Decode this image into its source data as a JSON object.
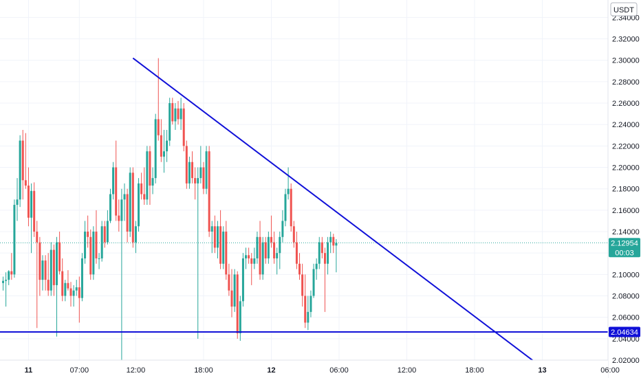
{
  "currency": "USDT",
  "colors": {
    "up": "#26a69a",
    "down": "#ef5350",
    "trendline": "#1010d8",
    "support": "#1010d8",
    "price_label": "#26a69a",
    "axis_text": "#131722",
    "grid": "#f0f3fa"
  },
  "price_label": {
    "value": "2.12954",
    "countdown": "00:03"
  },
  "support_label": {
    "value": "2.04634"
  },
  "chart_data": {
    "type": "candlestick",
    "y_ticks": [
      "2.02000",
      "2.04000",
      "2.06000",
      "2.08000",
      "2.10000",
      "2.12000",
      "2.14000",
      "2.16000",
      "2.18000",
      "2.20000",
      "2.22000",
      "2.24000",
      "2.26000",
      "2.28000",
      "2.30000",
      "2.32000",
      "2.34000"
    ],
    "ylim": [
      2.0033,
      2.3563
    ],
    "x_ticks": [
      {
        "label": "11",
        "bar": 9,
        "bold": true
      },
      {
        "label": "07:00",
        "bar": 27,
        "bold": false
      },
      {
        "label": "12:00",
        "bar": 47,
        "bold": false
      },
      {
        "label": "18:00",
        "bar": 71,
        "bold": false
      },
      {
        "label": "12",
        "bar": 95,
        "bold": true
      },
      {
        "label": "06:00",
        "bar": 119,
        "bold": false
      },
      {
        "label": "12:00",
        "bar": 143,
        "bold": false
      },
      {
        "label": "18:00",
        "bar": 167,
        "bold": false
      },
      {
        "label": "13",
        "bar": 191,
        "bold": true
      },
      {
        "label": "06:00",
        "bar": 215,
        "bold": false
      }
    ],
    "current_price": 2.12954,
    "support_level": 2.04634,
    "trendline": {
      "start": {
        "bar": 46,
        "price": 2.302
      },
      "end": {
        "bar": 195,
        "price": 2.005
      }
    },
    "candles": [
      [
        2.092,
        2.098,
        2.085,
        2.094
      ],
      [
        2.094,
        2.102,
        2.07,
        2.095
      ],
      [
        2.095,
        2.104,
        2.09,
        2.103
      ],
      [
        2.103,
        2.12,
        2.095,
        2.1
      ],
      [
        2.1,
        2.17,
        2.097,
        2.165
      ],
      [
        2.165,
        2.19,
        2.15,
        2.17
      ],
      [
        2.17,
        2.23,
        2.163,
        2.225
      ],
      [
        2.225,
        2.235,
        2.17,
        2.188
      ],
      [
        2.188,
        2.232,
        2.18,
        2.183
      ],
      [
        2.183,
        2.2,
        2.145,
        2.153
      ],
      [
        2.153,
        2.185,
        2.12,
        2.178
      ],
      [
        2.178,
        2.186,
        2.135,
        2.14
      ],
      [
        2.14,
        2.15,
        2.05,
        2.13
      ],
      [
        2.13,
        2.135,
        2.08,
        2.095
      ],
      [
        2.095,
        2.118,
        2.085,
        2.113
      ],
      [
        2.113,
        2.118,
        2.085,
        2.095
      ],
      [
        2.095,
        2.12,
        2.08,
        2.085
      ],
      [
        2.085,
        2.13,
        2.08,
        2.123
      ],
      [
        2.123,
        2.128,
        2.08,
        2.09
      ],
      [
        2.09,
        2.135,
        2.042,
        2.13
      ],
      [
        2.13,
        2.14,
        2.1,
        2.103
      ],
      [
        2.103,
        2.115,
        2.075,
        2.08
      ],
      [
        2.08,
        2.095,
        2.075,
        2.092
      ],
      [
        2.092,
        2.104,
        2.085,
        2.087
      ],
      [
        2.087,
        2.093,
        2.07,
        2.08
      ],
      [
        2.08,
        2.09,
        2.07,
        2.085
      ],
      [
        2.085,
        2.095,
        2.08,
        2.088
      ],
      [
        2.088,
        2.098,
        2.055,
        2.078
      ],
      [
        2.078,
        2.12,
        2.075,
        2.115
      ],
      [
        2.115,
        2.15,
        2.11,
        2.14
      ],
      [
        2.14,
        2.155,
        2.125,
        2.135
      ],
      [
        2.135,
        2.142,
        2.095,
        2.1
      ],
      [
        2.1,
        2.145,
        2.095,
        2.14
      ],
      [
        2.14,
        2.16,
        2.11,
        2.115
      ],
      [
        2.115,
        2.12,
        2.105,
        2.115
      ],
      [
        2.115,
        2.15,
        2.112,
        2.145
      ],
      [
        2.145,
        2.15,
        2.125,
        2.13
      ],
      [
        2.13,
        2.16,
        2.128,
        2.15
      ],
      [
        2.15,
        2.18,
        2.148,
        2.175
      ],
      [
        2.175,
        2.205,
        2.17,
        2.2
      ],
      [
        2.2,
        2.225,
        2.15,
        2.155
      ],
      [
        2.155,
        2.17,
        2.14,
        2.15
      ],
      [
        2.15,
        2.18,
        2.007,
        2.17
      ],
      [
        2.17,
        2.185,
        2.15,
        2.175
      ],
      [
        2.175,
        2.18,
        2.13,
        2.14
      ],
      [
        2.14,
        2.2,
        2.135,
        2.195
      ],
      [
        2.195,
        2.2,
        2.125,
        2.13
      ],
      [
        2.13,
        2.15,
        2.12,
        2.145
      ],
      [
        2.145,
        2.19,
        2.14,
        2.185
      ],
      [
        2.185,
        2.195,
        2.17,
        2.175
      ],
      [
        2.175,
        2.2,
        2.165,
        2.17
      ],
      [
        2.17,
        2.22,
        2.165,
        2.215
      ],
      [
        2.215,
        2.22,
        2.165,
        2.183
      ],
      [
        2.183,
        2.2,
        2.175,
        2.19
      ],
      [
        2.19,
        2.25,
        2.185,
        2.245
      ],
      [
        2.245,
        2.302,
        2.225,
        2.23
      ],
      [
        2.23,
        2.245,
        2.205,
        2.21
      ],
      [
        2.21,
        2.235,
        2.195,
        2.215
      ],
      [
        2.215,
        2.235,
        2.205,
        2.225
      ],
      [
        2.225,
        2.265,
        2.22,
        2.26
      ],
      [
        2.26,
        2.265,
        2.24,
        2.243
      ],
      [
        2.243,
        2.26,
        2.235,
        2.255
      ],
      [
        2.255,
        2.262,
        2.24,
        2.245
      ],
      [
        2.245,
        2.265,
        2.235,
        2.255
      ],
      [
        2.255,
        2.26,
        2.215,
        2.22
      ],
      [
        2.22,
        2.225,
        2.18,
        2.185
      ],
      [
        2.185,
        2.21,
        2.18,
        2.205
      ],
      [
        2.205,
        2.215,
        2.185,
        2.19
      ],
      [
        2.19,
        2.2,
        2.17,
        2.185
      ],
      [
        2.185,
        2.2,
        2.04,
        2.19
      ],
      [
        2.19,
        2.22,
        2.185,
        2.2
      ],
      [
        2.2,
        2.205,
        2.175,
        2.18
      ],
      [
        2.18,
        2.22,
        2.175,
        2.215
      ],
      [
        2.215,
        2.22,
        2.135,
        2.14
      ],
      [
        2.14,
        2.15,
        2.12,
        2.145
      ],
      [
        2.145,
        2.155,
        2.12,
        2.125
      ],
      [
        2.125,
        2.15,
        2.115,
        2.145
      ],
      [
        2.145,
        2.16,
        2.105,
        2.11
      ],
      [
        2.11,
        2.145,
        2.105,
        2.14
      ],
      [
        2.14,
        2.15,
        2.095,
        2.1
      ],
      [
        2.1,
        2.11,
        2.08,
        2.085
      ],
      [
        2.085,
        2.105,
        2.06,
        2.07
      ],
      [
        2.07,
        2.105,
        2.065,
        2.1
      ],
      [
        2.1,
        2.103,
        2.04,
        2.045
      ],
      [
        2.045,
        2.08,
        2.038,
        2.075
      ],
      [
        2.075,
        2.12,
        2.07,
        2.115
      ],
      [
        2.115,
        2.125,
        2.105,
        2.118
      ],
      [
        2.118,
        2.125,
        2.11,
        2.115
      ],
      [
        2.115,
        2.12,
        2.09,
        2.11
      ],
      [
        2.11,
        2.125,
        2.105,
        2.115
      ],
      [
        2.115,
        2.14,
        2.11,
        2.135
      ],
      [
        2.135,
        2.15,
        2.095,
        2.1
      ],
      [
        2.1,
        2.135,
        2.095,
        2.13
      ],
      [
        2.13,
        2.135,
        2.11,
        2.115
      ],
      [
        2.115,
        2.14,
        2.11,
        2.135
      ],
      [
        2.135,
        2.155,
        2.125,
        2.13
      ],
      [
        2.13,
        2.14,
        2.11,
        2.115
      ],
      [
        2.115,
        2.125,
        2.1,
        2.12
      ],
      [
        2.12,
        2.14,
        2.105,
        2.135
      ],
      [
        2.135,
        2.16,
        2.13,
        2.15
      ],
      [
        2.15,
        2.18,
        2.145,
        2.175
      ],
      [
        2.175,
        2.2,
        2.17,
        2.18
      ],
      [
        2.18,
        2.185,
        2.14,
        2.145
      ],
      [
        2.145,
        2.15,
        2.125,
        2.13
      ],
      [
        2.13,
        2.14,
        2.105,
        2.11
      ],
      [
        2.11,
        2.12,
        2.095,
        2.1
      ],
      [
        2.1,
        2.11,
        2.07,
        2.08
      ],
      [
        2.08,
        2.1,
        2.05,
        2.055
      ],
      [
        2.055,
        2.08,
        2.048,
        2.065
      ],
      [
        2.065,
        2.085,
        2.06,
        2.08
      ],
      [
        2.08,
        2.11,
        2.078,
        2.105
      ],
      [
        2.105,
        2.115,
        2.095,
        2.11
      ],
      [
        2.11,
        2.135,
        2.105,
        2.13
      ],
      [
        2.13,
        2.135,
        2.115,
        2.12
      ],
      [
        2.12,
        2.125,
        2.065,
        2.11
      ],
      [
        2.11,
        2.135,
        2.1,
        2.13
      ],
      [
        2.13,
        2.14,
        2.12,
        2.135
      ],
      [
        2.135,
        2.138,
        2.12,
        2.127
      ],
      [
        2.127,
        2.133,
        2.102,
        2.1295
      ]
    ]
  }
}
